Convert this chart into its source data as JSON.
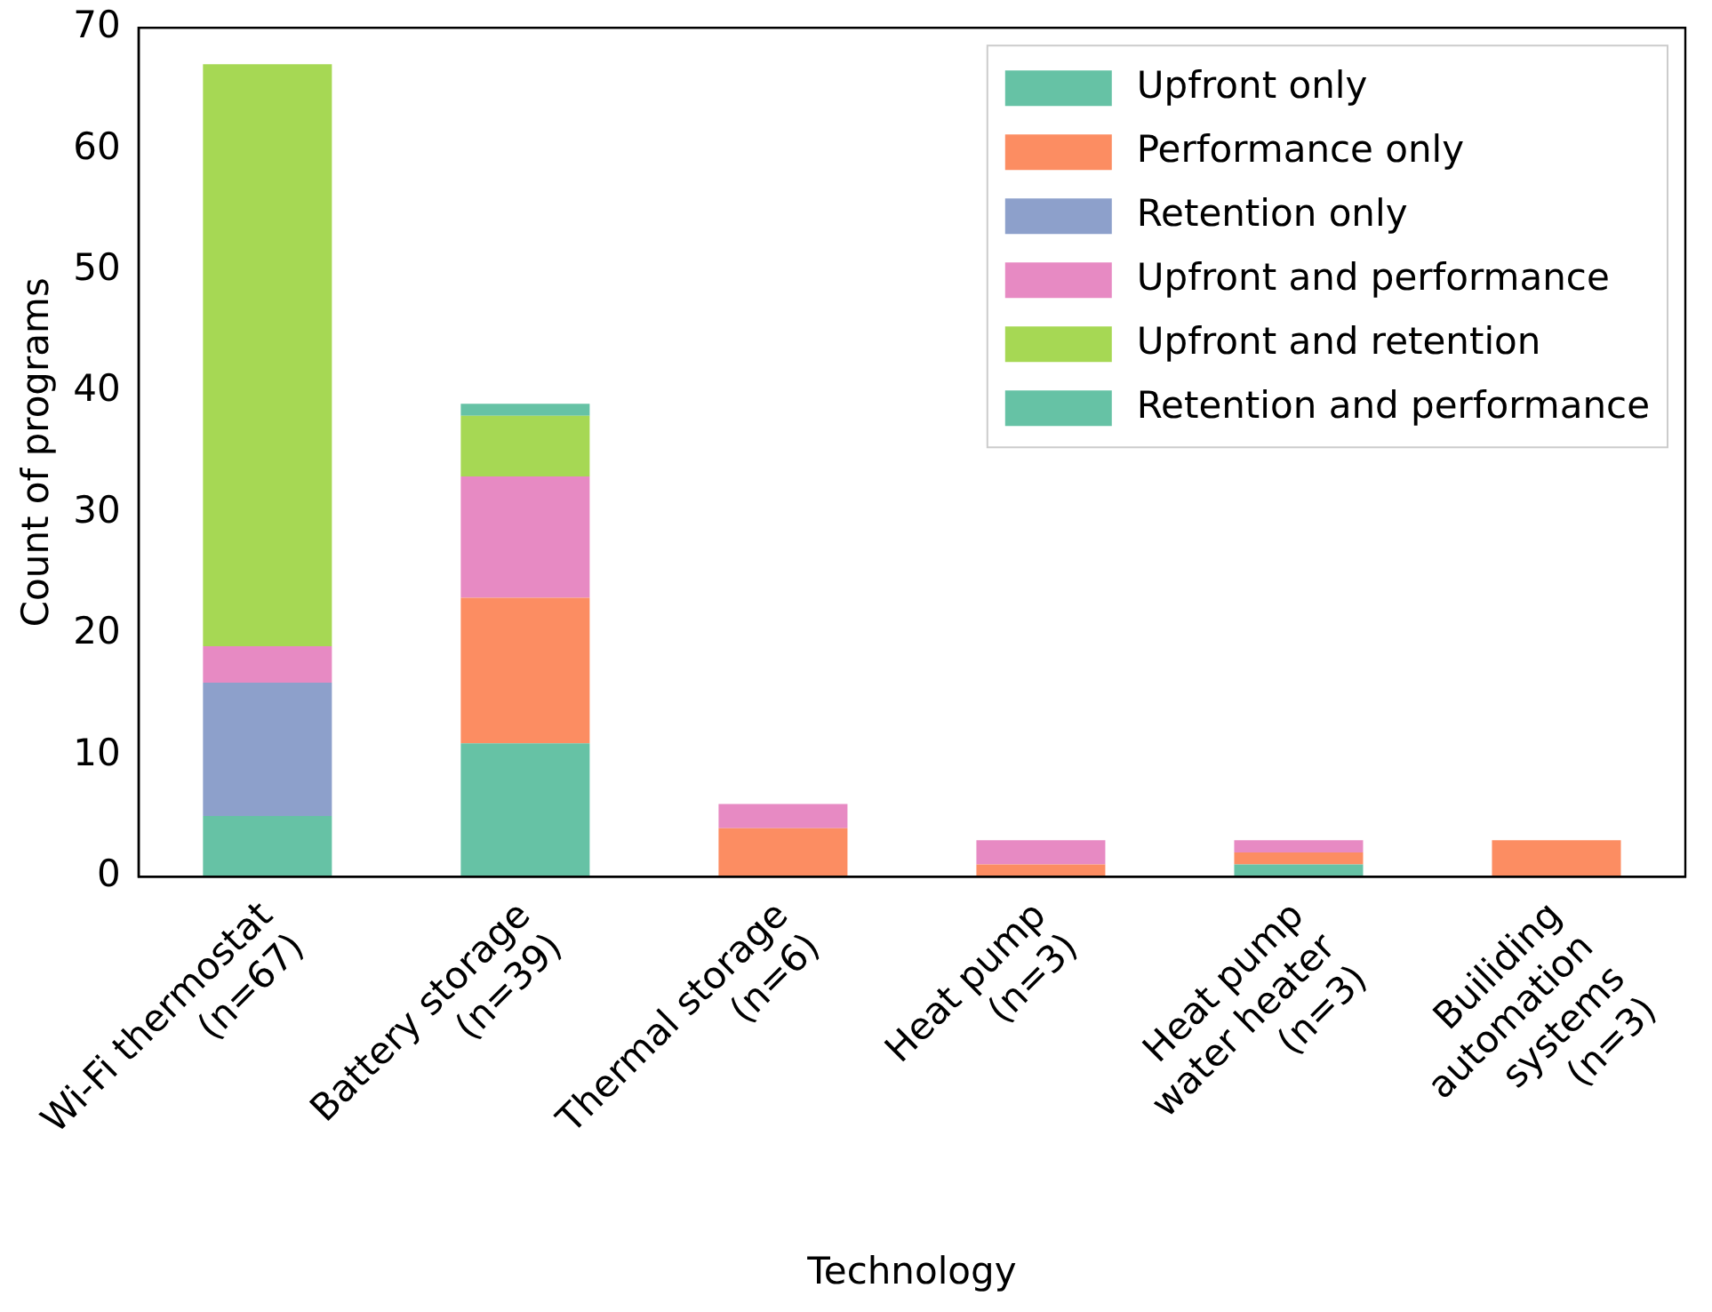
{
  "chart_data": {
    "type": "bar",
    "stacked": true,
    "xlabel": "Technology",
    "ylabel": "Count of programs",
    "categories": [
      "Wi-Fi thermostat\n(n=67)",
      "Battery storage\n(n=39)",
      "Thermal storage\n(n=6)",
      "Heat pump\n(n=3)",
      "Heat pump\nwater heater\n(n=3)",
      "Builiding\nautomation\nsystems\n(n=3)"
    ],
    "series": [
      {
        "name": "Upfront only",
        "color": "#66c2a5",
        "values": [
          5,
          11,
          0,
          0,
          1,
          0
        ]
      },
      {
        "name": "Performance only",
        "color": "#fc8d62",
        "values": [
          0,
          12,
          4,
          1,
          1,
          3
        ]
      },
      {
        "name": "Retention only",
        "color": "#8da0cb",
        "values": [
          11,
          0,
          0,
          0,
          0,
          0
        ]
      },
      {
        "name": "Upfront and performance",
        "color": "#e78ac3",
        "values": [
          3,
          10,
          2,
          2,
          1,
          0
        ]
      },
      {
        "name": "Upfront and retention",
        "color": "#a6d854",
        "values": [
          48,
          5,
          0,
          0,
          0,
          0
        ]
      },
      {
        "name": "Retention and performance",
        "color": "#66c2a5",
        "values": [
          0,
          1,
          0,
          0,
          0,
          0
        ]
      }
    ],
    "ylim": [
      0,
      70
    ],
    "yticks": [
      0,
      10,
      20,
      30,
      40,
      50,
      60,
      70
    ],
    "grid": false,
    "legend": "top right"
  }
}
